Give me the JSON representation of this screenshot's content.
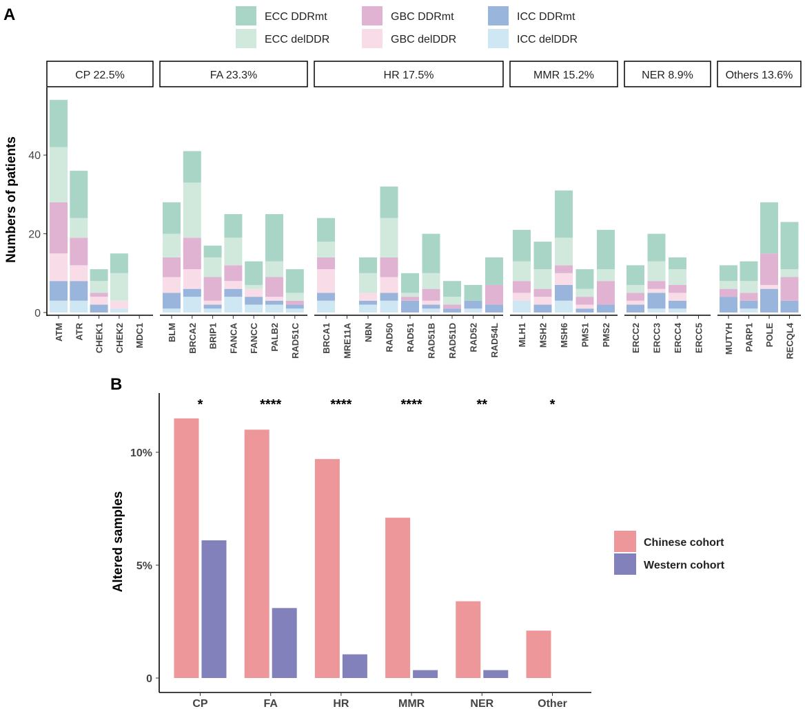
{
  "colors": {
    "ecc_mt": "#a9d5c7",
    "ecc_del": "#d0e9dc",
    "gbc_mt": "#e0b3d2",
    "gbc_del": "#f8dce8",
    "icc_mt": "#99b5db",
    "icc_del": "#cfe6f3",
    "chinese": "#ee979a",
    "western": "#8281bb"
  },
  "chart_data": [
    {
      "panel": "A",
      "type": "bar",
      "stacked": true,
      "ylabel": "Numbers of patients",
      "yticks": [
        0,
        20,
        40
      ],
      "ylim": [
        0,
        57
      ],
      "legend": [
        {
          "key": "ecc_mt",
          "label": "ECC DDRmt"
        },
        {
          "key": "ecc_del",
          "label": "ECC delDDR"
        },
        {
          "key": "gbc_mt",
          "label": "GBC DDRmt"
        },
        {
          "key": "gbc_del",
          "label": "GBC delDDR"
        },
        {
          "key": "icc_mt",
          "label": "ICC DDRmt"
        },
        {
          "key": "icc_del",
          "label": "ICC delDDR"
        }
      ],
      "series_order": [
        "icc_del",
        "icc_mt",
        "gbc_del",
        "gbc_mt",
        "ecc_del",
        "ecc_mt"
      ],
      "groups": [
        {
          "label": "CP 22.5%",
          "genes": [
            {
              "name": "ATM",
              "values": [
                3,
                5,
                7,
                13,
                14,
                12
              ]
            },
            {
              "name": "ATR",
              "values": [
                3,
                5,
                4,
                7,
                5,
                12
              ]
            },
            {
              "name": "CHEK1",
              "values": [
                0,
                2,
                2,
                1,
                3,
                3
              ]
            },
            {
              "name": "CHEK2",
              "values": [
                1,
                0,
                2,
                0,
                7,
                5
              ]
            },
            {
              "name": "MDC1",
              "values": [
                0,
                0,
                0,
                0,
                0,
                0
              ]
            }
          ]
        },
        {
          "label": "FA 23.3%",
          "genes": [
            {
              "name": "BLM",
              "values": [
                1,
                4,
                4,
                5,
                6,
                8
              ]
            },
            {
              "name": "BRCA2",
              "values": [
                4,
                2,
                5,
                8,
                14,
                8
              ]
            },
            {
              "name": "BRIP1",
              "values": [
                1,
                1,
                1,
                6,
                5,
                3
              ]
            },
            {
              "name": "FANCA",
              "values": [
                4,
                2,
                2,
                4,
                7,
                6
              ]
            },
            {
              "name": "FANCC",
              "values": [
                2,
                2,
                2,
                0,
                1,
                6
              ]
            },
            {
              "name": "PALB2",
              "values": [
                2,
                1,
                1,
                5,
                4,
                12
              ]
            },
            {
              "name": "RAD51C",
              "values": [
                1,
                1,
                0,
                1,
                2,
                6
              ]
            }
          ]
        },
        {
          "label": "HR 17.5%",
          "genes": [
            {
              "name": "BRCA1",
              "values": [
                3,
                2,
                6,
                3,
                4,
                6
              ]
            },
            {
              "name": "MRE11A",
              "values": [
                0,
                0,
                0,
                0,
                0,
                0
              ]
            },
            {
              "name": "NBN",
              "values": [
                2,
                1,
                2,
                0,
                5,
                4
              ]
            },
            {
              "name": "RAD50",
              "values": [
                3,
                2,
                4,
                5,
                10,
                8
              ]
            },
            {
              "name": "RAD51",
              "values": [
                0,
                3,
                0,
                1,
                1,
                5
              ]
            },
            {
              "name": "RAD51B",
              "values": [
                1,
                1,
                1,
                3,
                4,
                10
              ]
            },
            {
              "name": "RAD51D",
              "values": [
                0,
                1,
                0,
                1,
                2,
                4
              ]
            },
            {
              "name": "RAD52",
              "values": [
                1,
                2,
                0,
                0,
                0,
                4
              ]
            },
            {
              "name": "RAD54L",
              "values": [
                0,
                2,
                0,
                5,
                0,
                7
              ]
            }
          ]
        },
        {
          "label": "MMR 15.2%",
          "genes": [
            {
              "name": "MLH1",
              "values": [
                3,
                0,
                2,
                3,
                5,
                8
              ]
            },
            {
              "name": "MSH2",
              "values": [
                0,
                2,
                2,
                2,
                5,
                7
              ]
            },
            {
              "name": "MSH6",
              "values": [
                3,
                4,
                3,
                2,
                7,
                12
              ]
            },
            {
              "name": "PMS1",
              "values": [
                0,
                1,
                1,
                2,
                2,
                5
              ]
            },
            {
              "name": "PMS2",
              "values": [
                0,
                2,
                0,
                6,
                3,
                10
              ]
            }
          ]
        },
        {
          "label": "NER 8.9%",
          "genes": [
            {
              "name": "ERCC2",
              "values": [
                0,
                2,
                1,
                2,
                2,
                5
              ]
            },
            {
              "name": "ERCC3",
              "values": [
                1,
                4,
                1,
                2,
                5,
                7
              ]
            },
            {
              "name": "ERCC4",
              "values": [
                1,
                2,
                2,
                2,
                4,
                3
              ]
            },
            {
              "name": "ERCC5",
              "values": [
                0,
                0,
                0,
                0,
                0,
                0
              ]
            }
          ]
        },
        {
          "label": "Others 13.6%",
          "genes": [
            {
              "name": "MUTYH",
              "values": [
                0,
                4,
                0,
                2,
                2,
                4
              ]
            },
            {
              "name": "PARP1",
              "values": [
                1,
                2,
                0,
                2,
                3,
                5
              ]
            },
            {
              "name": "POLE",
              "values": [
                0,
                6,
                1,
                8,
                0,
                13
              ]
            },
            {
              "name": "RECQL4",
              "values": [
                0,
                3,
                0,
                6,
                2,
                12
              ]
            }
          ]
        }
      ]
    },
    {
      "panel": "B",
      "type": "bar",
      "ylabel": "Altered samples",
      "yticks": [
        {
          "value": 0,
          "label": "0"
        },
        {
          "value": 5,
          "label": "5%"
        },
        {
          "value": 10,
          "label": "10%"
        }
      ],
      "ylim": [
        0,
        12.8
      ],
      "categories": [
        "CP",
        "FA",
        "HR",
        "MMR",
        "NER",
        "Other"
      ],
      "series": [
        {
          "key": "chinese",
          "name": "Chinese cohort",
          "values": [
            11.5,
            11.0,
            9.7,
            7.1,
            3.4,
            2.1
          ]
        },
        {
          "key": "western",
          "name": "Western cohort",
          "values": [
            6.1,
            3.1,
            1.05,
            0.35,
            0.35,
            0
          ]
        }
      ],
      "significance": [
        "*",
        "****",
        "****",
        "****",
        "**",
        "*"
      ]
    }
  ],
  "labels": {
    "panel_a": "A",
    "panel_b": "B"
  }
}
